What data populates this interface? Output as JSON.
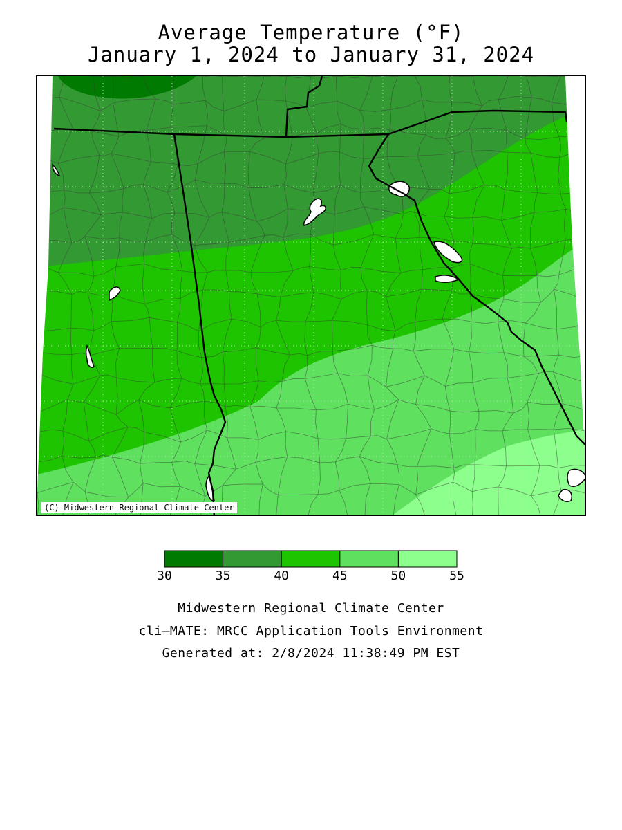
{
  "title_line1": "Average Temperature (°F)",
  "title_line2": "January 1, 2024 to January 31, 2024",
  "map": {
    "copyright": "(C) Midwestern Regional Climate Center",
    "boundary_color": "#000000",
    "county_line_color": "#3a3a3a",
    "water_color": "#ffffff"
  },
  "legend": {
    "bins": [
      {
        "min": 30,
        "max": 35,
        "color": "#007a00"
      },
      {
        "min": 35,
        "max": 40,
        "color": "#339933"
      },
      {
        "min": 40,
        "max": 45,
        "color": "#1ec400"
      },
      {
        "min": 45,
        "max": 50,
        "color": "#5fe05f"
      },
      {
        "min": 50,
        "max": 55,
        "color": "#8dff8d"
      }
    ],
    "tick_labels": [
      "30",
      "35",
      "40",
      "45",
      "50",
      "55"
    ]
  },
  "credits": {
    "line1": "Midwestern Regional Climate Center",
    "line2": "cli—MATE: MRCC Application Tools Environment",
    "line3": "Generated at: 2/8/2024 11:38:49 PM EST"
  }
}
